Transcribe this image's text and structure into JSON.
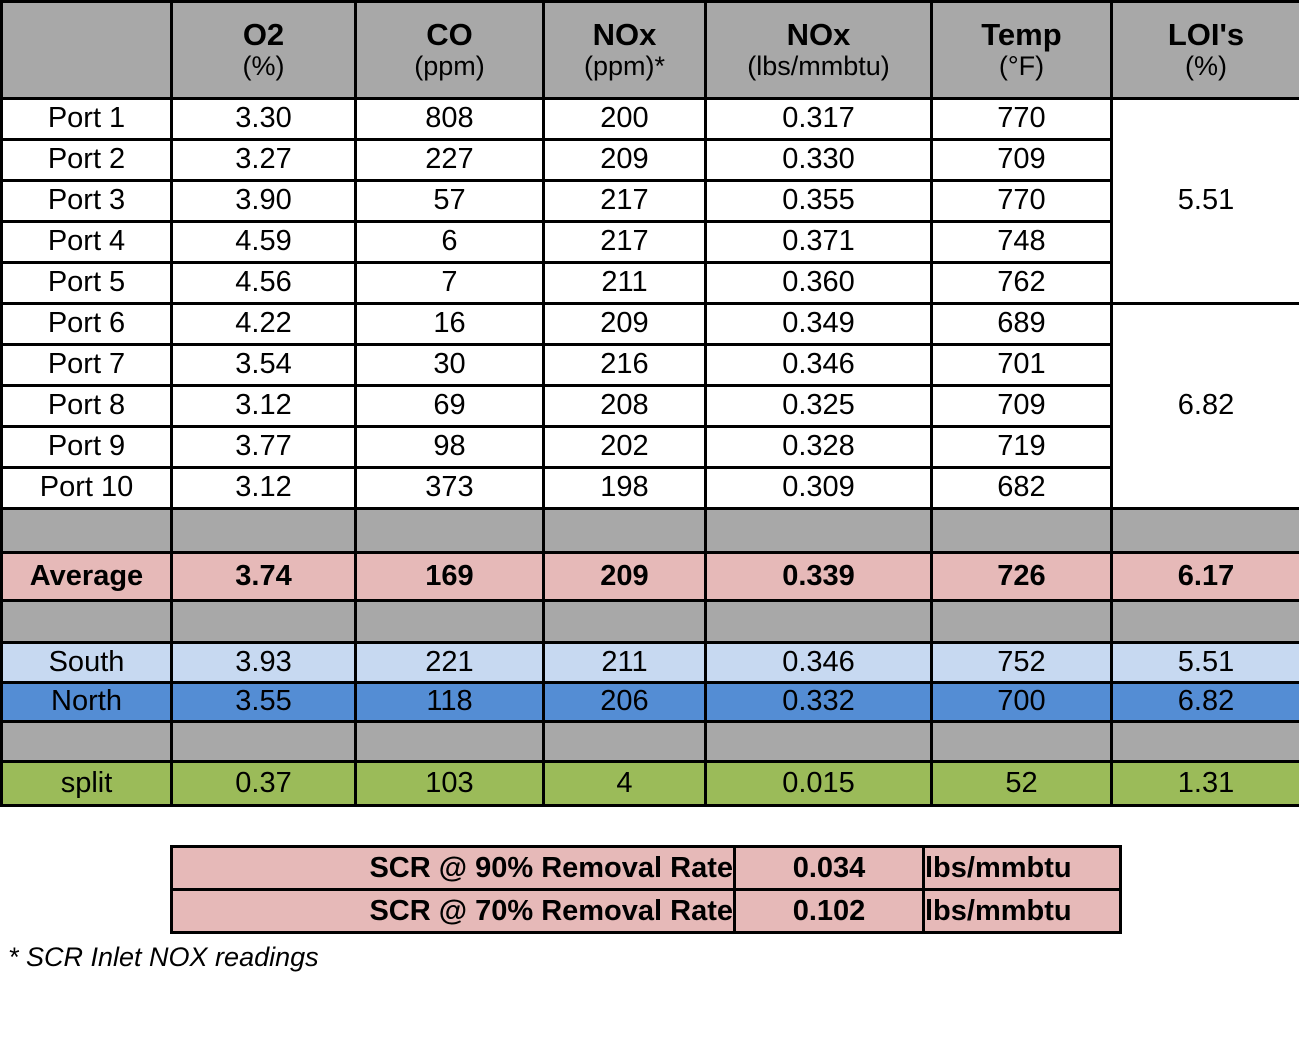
{
  "header": {
    "corner": "",
    "cols": [
      {
        "title": "O2",
        "unit": "(%)"
      },
      {
        "title": "CO",
        "unit": "(ppm)"
      },
      {
        "title": "NOx",
        "unit": "(ppm)*"
      },
      {
        "title": "NOx",
        "unit": "(lbs/mmbtu)"
      },
      {
        "title": "Temp",
        "unit": "(°F)"
      },
      {
        "title": "LOI's",
        "unit": "(%)"
      }
    ]
  },
  "ports": [
    {
      "name": "Port 1",
      "o2": "3.30",
      "co": "808",
      "nox": "200",
      "noxlbs": "0.317",
      "temp": "770"
    },
    {
      "name": "Port 2",
      "o2": "3.27",
      "co": "227",
      "nox": "209",
      "noxlbs": "0.330",
      "temp": "709"
    },
    {
      "name": "Port 3",
      "o2": "3.90",
      "co": "57",
      "nox": "217",
      "noxlbs": "0.355",
      "temp": "770"
    },
    {
      "name": "Port 4",
      "o2": "4.59",
      "co": "6",
      "nox": "217",
      "noxlbs": "0.371",
      "temp": "748"
    },
    {
      "name": "Port 5",
      "o2": "4.56",
      "co": "7",
      "nox": "211",
      "noxlbs": "0.360",
      "temp": "762"
    },
    {
      "name": "Port 6",
      "o2": "4.22",
      "co": "16",
      "nox": "209",
      "noxlbs": "0.349",
      "temp": "689"
    },
    {
      "name": "Port 7",
      "o2": "3.54",
      "co": "30",
      "nox": "216",
      "noxlbs": "0.346",
      "temp": "701"
    },
    {
      "name": "Port 8",
      "o2": "3.12",
      "co": "69",
      "nox": "208",
      "noxlbs": "0.325",
      "temp": "709"
    },
    {
      "name": "Port 9",
      "o2": "3.77",
      "co": "98",
      "nox": "202",
      "noxlbs": "0.328",
      "temp": "719"
    },
    {
      "name": "Port 10",
      "o2": "3.12",
      "co": "373",
      "nox": "198",
      "noxlbs": "0.309",
      "temp": "682"
    }
  ],
  "loi": {
    "south_group": "5.51",
    "north_group": "6.82"
  },
  "average": {
    "name": "Average",
    "o2": "3.74",
    "co": "169",
    "nox": "209",
    "noxlbs": "0.339",
    "temp": "726",
    "loi": "6.17"
  },
  "south": {
    "name": "South",
    "o2": "3.93",
    "co": "221",
    "nox": "211",
    "noxlbs": "0.346",
    "temp": "752",
    "loi": "5.51"
  },
  "north": {
    "name": "North",
    "o2": "3.55",
    "co": "118",
    "nox": "206",
    "noxlbs": "0.332",
    "temp": "700",
    "loi": "6.82"
  },
  "split": {
    "name": "split",
    "o2": "0.37",
    "co": "103",
    "nox": "4",
    "noxlbs": "0.015",
    "temp": "52",
    "loi": "1.31"
  },
  "scr": {
    "rows": [
      {
        "label": "SCR @ 90% Removal Rate",
        "value": "0.034",
        "unit": "lbs/mmbtu"
      },
      {
        "label": "SCR @ 70% Removal Rate",
        "value": "0.102",
        "unit": "lbs/mmbtu"
      }
    ]
  },
  "footnote": "* SCR Inlet NOX readings",
  "colors": {
    "header_gray": "#a8a8a8",
    "average_pink": "#e6b9b8",
    "south_light_blue": "#c7d9f1",
    "north_blue": "#548dd4",
    "split_green": "#9bbb59",
    "border_black": "#000000"
  }
}
